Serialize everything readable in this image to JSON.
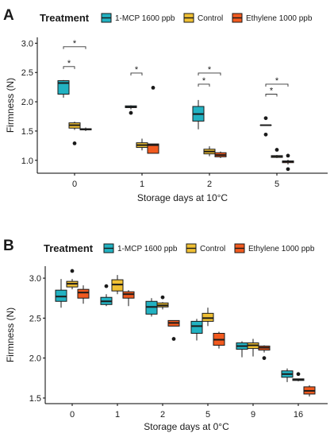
{
  "colors": {
    "1-MCP 1600 ppb": "#22b2c2",
    "Control": "#f0c033",
    "Ethylene 1000 ppb": "#f25a1f"
  },
  "chart_data": [
    {
      "type": "boxplot",
      "panel": "A",
      "legend_title": "Treatment",
      "legend_position": "top",
      "series_names": [
        "1-MCP 1600 ppb",
        "Control",
        "Ethylene 1000 ppb"
      ],
      "categories": [
        "0",
        "1",
        "2",
        "5"
      ],
      "xlabel": "Storage days at 10°C",
      "ylabel": "Firmness (N)",
      "ylim": [
        0.78,
        3.1
      ],
      "yticks": [
        1.0,
        1.5,
        2.0,
        2.5,
        3.0
      ],
      "ytick_labels": [
        "1.0",
        "1.5",
        "2.0",
        "2.5",
        "3.0"
      ],
      "boxes": [
        {
          "category": "0",
          "series": "1-MCP 1600 ppb",
          "min": 2.07,
          "q1": 2.13,
          "median": 2.32,
          "q3": 2.36,
          "max": 2.37,
          "outliers": []
        },
        {
          "category": "0",
          "series": "Control",
          "min": 1.52,
          "q1": 1.55,
          "median": 1.6,
          "q3": 1.64,
          "max": 1.66,
          "outliers": [
            1.29
          ]
        },
        {
          "category": "0",
          "series": "Ethylene 1000 ppb",
          "min": 1.5,
          "q1": 1.52,
          "median": 1.53,
          "q3": 1.54,
          "max": 1.56,
          "outliers": []
        },
        {
          "category": "1",
          "series": "1-MCP 1600 ppb",
          "min": 1.87,
          "q1": 1.9,
          "median": 1.91,
          "q3": 1.93,
          "max": 1.94,
          "outliers": [
            1.81
          ]
        },
        {
          "category": "1",
          "series": "Control",
          "min": 1.17,
          "q1": 1.22,
          "median": 1.26,
          "q3": 1.3,
          "max": 1.37,
          "outliers": []
        },
        {
          "category": "1",
          "series": "Ethylene 1000 ppb",
          "min": 1.12,
          "q1": 1.12,
          "median": 1.26,
          "q3": 1.28,
          "max": 1.28,
          "outliers": [
            2.24
          ]
        },
        {
          "category": "2",
          "series": "1-MCP 1600 ppb",
          "min": 1.53,
          "q1": 1.67,
          "median": 1.79,
          "q3": 1.92,
          "max": 2.03,
          "outliers": []
        },
        {
          "category": "2",
          "series": "Control",
          "min": 1.07,
          "q1": 1.11,
          "median": 1.15,
          "q3": 1.19,
          "max": 1.24,
          "outliers": []
        },
        {
          "category": "2",
          "series": "Ethylene 1000 ppb",
          "min": 1.04,
          "q1": 1.06,
          "median": 1.09,
          "q3": 1.13,
          "max": 1.15,
          "outliers": []
        },
        {
          "category": "5",
          "series": "1-MCP 1600 ppb",
          "min": 1.6,
          "q1": 1.6,
          "median": 1.6,
          "q3": 1.6,
          "max": 1.6,
          "outliers": [
            1.72,
            1.44
          ]
        },
        {
          "category": "5",
          "series": "Control",
          "min": 1.04,
          "q1": 1.05,
          "median": 1.07,
          "q3": 1.08,
          "max": 1.09,
          "outliers": [
            1.18
          ]
        },
        {
          "category": "5",
          "series": "Ethylene 1000 ppb",
          "min": 0.93,
          "q1": 0.96,
          "median": 0.98,
          "q3": 0.99,
          "max": 1.01,
          "outliers": [
            1.08,
            0.85
          ]
        }
      ],
      "significance": [
        {
          "from": [
            "0",
            "1-MCP 1600 ppb"
          ],
          "to": [
            "0",
            "Control"
          ],
          "label": "*",
          "y": 2.6
        },
        {
          "from": [
            "0",
            "1-MCP 1600 ppb"
          ],
          "to": [
            "0",
            "Ethylene 1000 ppb"
          ],
          "label": "*",
          "y": 2.94
        },
        {
          "from": [
            "1",
            "1-MCP 1600 ppb"
          ],
          "to": [
            "1",
            "Control"
          ],
          "label": "*",
          "y": 2.49
        },
        {
          "from": [
            "2",
            "1-MCP 1600 ppb"
          ],
          "to": [
            "2",
            "Control"
          ],
          "label": "*",
          "y": 2.3
        },
        {
          "from": [
            "2",
            "1-MCP 1600 ppb"
          ],
          "to": [
            "2",
            "Ethylene 1000 ppb"
          ],
          "label": "*",
          "y": 2.49
        },
        {
          "from": [
            "5",
            "1-MCP 1600 ppb"
          ],
          "to": [
            "5",
            "Control"
          ],
          "label": "*",
          "y": 2.13
        },
        {
          "from": [
            "5",
            "1-MCP 1600 ppb"
          ],
          "to": [
            "5",
            "Ethylene 1000 ppb"
          ],
          "label": "*",
          "y": 2.3
        }
      ]
    },
    {
      "type": "boxplot",
      "panel": "B",
      "legend_title": "Treatment",
      "legend_position": "top",
      "series_names": [
        "1-MCP 1600 ppb",
        "Control",
        "Ethylene 1000 ppb"
      ],
      "categories": [
        "0",
        "1",
        "2",
        "5",
        "9",
        "16"
      ],
      "xlabel": "Storage days at 0°C",
      "ylabel": "Firmness (N)",
      "ylim": [
        1.43,
        3.15
      ],
      "yticks": [
        1.5,
        2.0,
        2.5,
        3.0
      ],
      "ytick_labels": [
        "1.5",
        "2.0",
        "2.5",
        "3.0"
      ],
      "boxes": [
        {
          "category": "0",
          "series": "1-MCP 1600 ppb",
          "min": 2.63,
          "q1": 2.71,
          "median": 2.77,
          "q3": 2.85,
          "max": 2.99,
          "outliers": []
        },
        {
          "category": "0",
          "series": "Control",
          "min": 2.86,
          "q1": 2.89,
          "median": 2.93,
          "q3": 2.96,
          "max": 2.99,
          "outliers": [
            3.09
          ]
        },
        {
          "category": "0",
          "series": "Ethylene 1000 ppb",
          "min": 2.68,
          "q1": 2.75,
          "median": 2.82,
          "q3": 2.86,
          "max": 2.91,
          "outliers": []
        },
        {
          "category": "1",
          "series": "1-MCP 1600 ppb",
          "min": 2.65,
          "q1": 2.67,
          "median": 2.71,
          "q3": 2.76,
          "max": 2.8,
          "outliers": [
            2.9
          ]
        },
        {
          "category": "1",
          "series": "Control",
          "min": 2.8,
          "q1": 2.84,
          "median": 2.92,
          "q3": 2.98,
          "max": 3.04,
          "outliers": []
        },
        {
          "category": "1",
          "series": "Ethylene 1000 ppb",
          "min": 2.65,
          "q1": 2.75,
          "median": 2.8,
          "q3": 2.83,
          "max": 2.85,
          "outliers": []
        },
        {
          "category": "2",
          "series": "1-MCP 1600 ppb",
          "min": 2.52,
          "q1": 2.55,
          "median": 2.64,
          "q3": 2.71,
          "max": 2.75,
          "outliers": []
        },
        {
          "category": "2",
          "series": "Control",
          "min": 2.61,
          "q1": 2.64,
          "median": 2.66,
          "q3": 2.69,
          "max": 2.7,
          "outliers": [
            2.76
          ]
        },
        {
          "category": "2",
          "series": "Ethylene 1000 ppb",
          "min": 2.4,
          "q1": 2.4,
          "median": 2.44,
          "q3": 2.47,
          "max": 2.47,
          "outliers": [
            2.24
          ]
        },
        {
          "category": "5",
          "series": "1-MCP 1600 ppb",
          "min": 2.22,
          "q1": 2.31,
          "median": 2.4,
          "q3": 2.46,
          "max": 2.49,
          "outliers": []
        },
        {
          "category": "5",
          "series": "Control",
          "min": 2.4,
          "q1": 2.46,
          "median": 2.5,
          "q3": 2.56,
          "max": 2.63,
          "outliers": []
        },
        {
          "category": "5",
          "series": "Ethylene 1000 ppb",
          "min": 2.12,
          "q1": 2.16,
          "median": 2.23,
          "q3": 2.31,
          "max": 2.33,
          "outliers": []
        },
        {
          "category": "9",
          "series": "1-MCP 1600 ppb",
          "min": 2.01,
          "q1": 2.11,
          "median": 2.15,
          "q3": 2.19,
          "max": 2.21,
          "outliers": []
        },
        {
          "category": "9",
          "series": "Control",
          "min": 2.02,
          "q1": 2.12,
          "median": 2.16,
          "q3": 2.19,
          "max": 2.24,
          "outliers": []
        },
        {
          "category": "9",
          "series": "Ethylene 1000 ppb",
          "min": 2.07,
          "q1": 2.1,
          "median": 2.13,
          "q3": 2.15,
          "max": 2.16,
          "outliers": [
            2.0
          ]
        },
        {
          "category": "16",
          "series": "1-MCP 1600 ppb",
          "min": 1.7,
          "q1": 1.76,
          "median": 1.8,
          "q3": 1.84,
          "max": 1.87,
          "outliers": []
        },
        {
          "category": "16",
          "series": "Control",
          "min": 1.71,
          "q1": 1.72,
          "median": 1.73,
          "q3": 1.74,
          "max": 1.74,
          "outliers": [
            1.8
          ]
        },
        {
          "category": "16",
          "series": "Ethylene 1000 ppb",
          "min": 1.52,
          "q1": 1.55,
          "median": 1.59,
          "q3": 1.64,
          "max": 1.66,
          "outliers": []
        }
      ],
      "significance": []
    }
  ]
}
